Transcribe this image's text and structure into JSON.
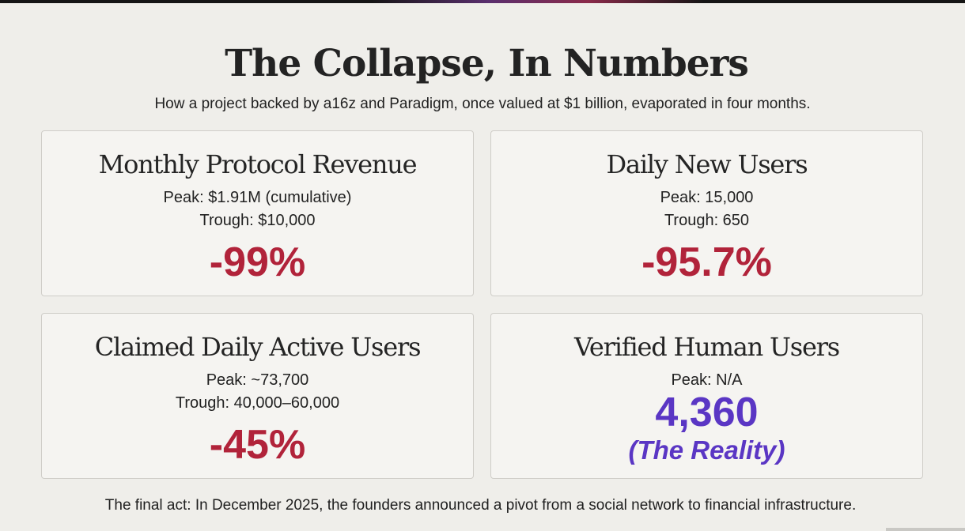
{
  "header": {
    "title": "The Collapse, In Numbers",
    "subtitle": "How a project backed by a16z and Paradigm, once valued at $1 billion, evaporated in four months."
  },
  "cards": [
    {
      "title": "Monthly Protocol Revenue",
      "peak": "Peak: $1.91M (cumulative)",
      "trough": "Trough: $10,000",
      "value": "-99%"
    },
    {
      "title": "Daily New Users",
      "peak": "Peak: 15,000",
      "trough": "Trough: 650",
      "value": "-95.7%"
    },
    {
      "title": "Claimed Daily Active Users",
      "peak": "Peak: ~73,700",
      "trough": "Trough: 40,000–60,000",
      "value": "-45%"
    },
    {
      "title": "Verified Human Users",
      "peak": "Peak: N/A",
      "value": "4,360",
      "note": "(The Reality)"
    }
  ],
  "footer": "The final act: In December 2025, the founders announced a pivot from a social network to financial infrastructure.",
  "colors": {
    "background": "#efeeea",
    "card_background": "#f5f4f1",
    "decline": "#b1233a",
    "reality": "#5a36c4"
  }
}
